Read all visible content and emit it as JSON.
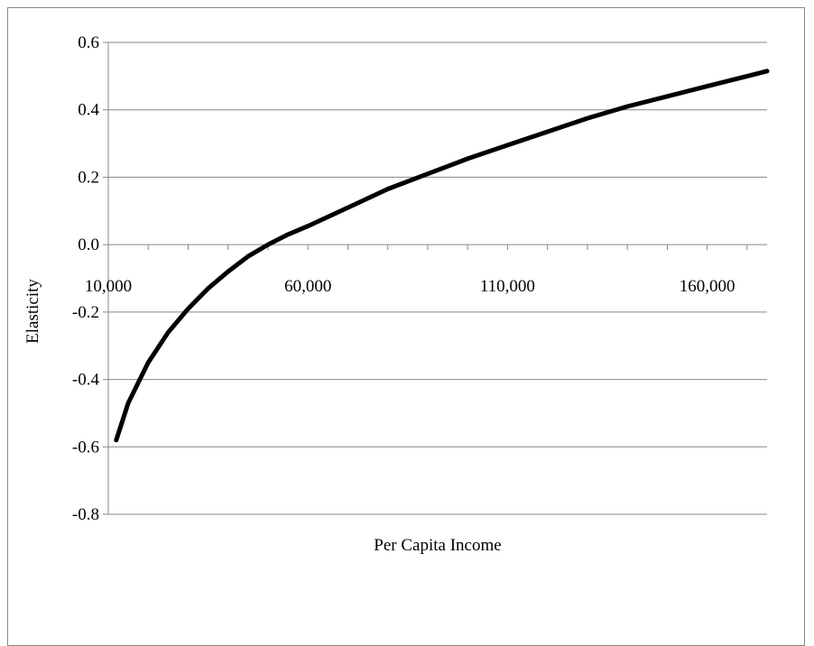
{
  "chart_data": {
    "type": "line",
    "title": "",
    "xlabel": "Per Capita Income",
    "ylabel": "Elasticity",
    "xlim": [
      10000,
      175000
    ],
    "ylim": [
      -0.8,
      0.6
    ],
    "x_ticks": [
      10000,
      60000,
      110000,
      160000
    ],
    "x_tick_labels": [
      "10,000",
      "60,000",
      "110,000",
      "160,000"
    ],
    "y_ticks": [
      -0.8,
      -0.6,
      -0.4,
      -0.2,
      0.0,
      0.2,
      0.4,
      0.6
    ],
    "y_tick_labels": [
      "-0.8",
      "-0.6",
      "-0.4",
      "-0.2",
      "0.0",
      "0.2",
      "0.4",
      "0.6"
    ],
    "grid": "horizontal",
    "legend": "none",
    "line_color": "#000000",
    "series": [
      {
        "x": [
          12000,
          15000,
          20000,
          25000,
          30000,
          35000,
          40000,
          45000,
          50000,
          55000,
          60000,
          70000,
          80000,
          90000,
          100000,
          110000,
          120000,
          130000,
          140000,
          150000,
          160000,
          170000,
          175000
        ],
        "y": [
          -0.58,
          -0.47,
          -0.35,
          -0.26,
          -0.19,
          -0.13,
          -0.08,
          -0.035,
          0.0,
          0.03,
          0.055,
          0.11,
          0.165,
          0.21,
          0.255,
          0.295,
          0.335,
          0.375,
          0.41,
          0.44,
          0.47,
          0.5,
          0.515
        ]
      }
    ]
  }
}
